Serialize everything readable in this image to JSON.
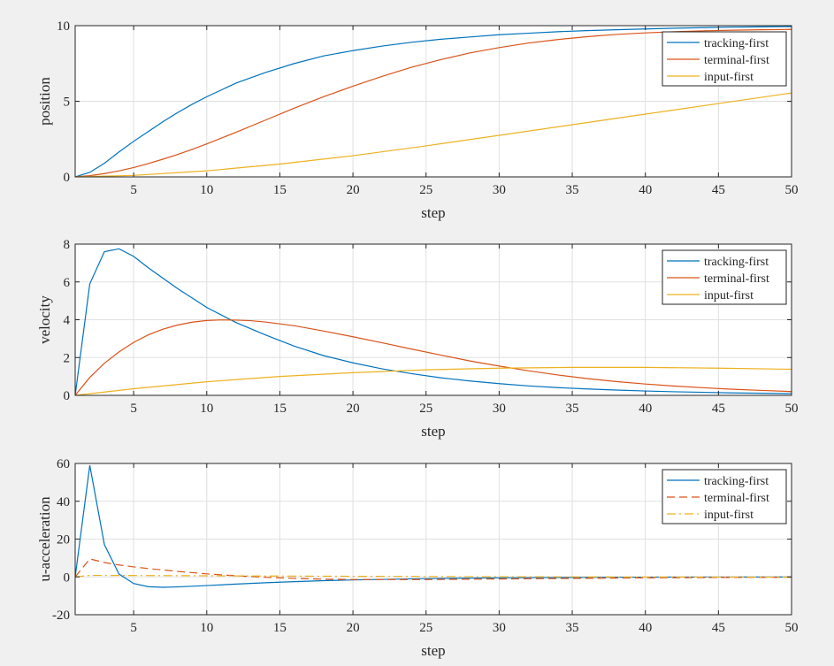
{
  "colors": {
    "tracking": "#0072BD",
    "terminal": "#D95319",
    "input": "#EDB120",
    "figure_bg": "#f0f0f0",
    "axes_bg": "#ffffff",
    "grid": "#e0e0e0",
    "axis": "#262626"
  },
  "chart_data": [
    {
      "type": "line",
      "xlabel": "step",
      "ylabel": "position",
      "xlim": [
        1,
        50
      ],
      "ylim": [
        0,
        10
      ],
      "xticks": [
        "5",
        "10",
        "15",
        "20",
        "25",
        "30",
        "35",
        "40",
        "45",
        "50"
      ],
      "yticks": [
        "0",
        "5",
        "10"
      ],
      "grid": true,
      "legend": "top-right",
      "series": [
        {
          "name": "tracking-first",
          "style": "solid",
          "x": [
            1,
            2,
            3,
            4,
            5,
            6,
            7,
            8,
            9,
            10,
            12,
            14,
            16,
            18,
            20,
            22,
            24,
            26,
            28,
            30,
            32,
            34,
            36,
            38,
            40,
            42,
            44,
            46,
            48,
            50
          ],
          "y": [
            0,
            0.3,
            0.9,
            1.65,
            2.35,
            3.0,
            3.65,
            4.25,
            4.8,
            5.3,
            6.2,
            6.9,
            7.5,
            8.0,
            8.35,
            8.65,
            8.9,
            9.1,
            9.25,
            9.4,
            9.5,
            9.6,
            9.67,
            9.73,
            9.78,
            9.83,
            9.87,
            9.9,
            9.92,
            9.94
          ]
        },
        {
          "name": "terminal-first",
          "style": "solid",
          "x": [
            1,
            2,
            3,
            4,
            5,
            6,
            7,
            8,
            9,
            10,
            12,
            14,
            16,
            18,
            20,
            22,
            24,
            26,
            28,
            30,
            32,
            34,
            36,
            38,
            40,
            42,
            44,
            46,
            48,
            50
          ],
          "y": [
            0,
            0.08,
            0.22,
            0.4,
            0.62,
            0.88,
            1.17,
            1.48,
            1.82,
            2.18,
            2.95,
            3.75,
            4.55,
            5.3,
            6.0,
            6.65,
            7.25,
            7.75,
            8.2,
            8.55,
            8.85,
            9.08,
            9.27,
            9.42,
            9.52,
            9.6,
            9.66,
            9.7,
            9.73,
            9.75
          ]
        },
        {
          "name": "input-first",
          "style": "solid",
          "x": [
            1,
            5,
            10,
            15,
            20,
            25,
            30,
            35,
            40,
            45,
            50
          ],
          "y": [
            0,
            0.1,
            0.4,
            0.85,
            1.4,
            2.05,
            2.75,
            3.45,
            4.15,
            4.85,
            5.55
          ]
        }
      ]
    },
    {
      "type": "line",
      "xlabel": "step",
      "ylabel": "velocity",
      "xlim": [
        1,
        50
      ],
      "ylim": [
        0,
        8
      ],
      "xticks": [
        "5",
        "10",
        "15",
        "20",
        "25",
        "30",
        "35",
        "40",
        "45",
        "50"
      ],
      "yticks": [
        "0",
        "2",
        "4",
        "6",
        "8"
      ],
      "grid": true,
      "legend": "top-right",
      "series": [
        {
          "name": "tracking-first",
          "style": "solid",
          "x": [
            1,
            2,
            3,
            4,
            5,
            6,
            7,
            8,
            9,
            10,
            12,
            14,
            16,
            18,
            20,
            22,
            24,
            26,
            28,
            30,
            32,
            34,
            36,
            38,
            40,
            42,
            44,
            46,
            48,
            50
          ],
          "y": [
            0,
            5.9,
            7.6,
            7.75,
            7.35,
            6.75,
            6.2,
            5.65,
            5.15,
            4.65,
            3.85,
            3.2,
            2.6,
            2.1,
            1.72,
            1.4,
            1.15,
            0.93,
            0.76,
            0.62,
            0.5,
            0.41,
            0.34,
            0.28,
            0.23,
            0.19,
            0.16,
            0.13,
            0.11,
            0.09
          ]
        },
        {
          "name": "terminal-first",
          "style": "solid",
          "x": [
            1,
            2,
            3,
            4,
            5,
            6,
            7,
            8,
            9,
            10,
            11,
            12,
            13,
            14,
            16,
            18,
            20,
            22,
            24,
            26,
            28,
            30,
            32,
            34,
            36,
            38,
            40,
            42,
            44,
            46,
            48,
            50
          ],
          "y": [
            0,
            0.95,
            1.7,
            2.3,
            2.8,
            3.2,
            3.5,
            3.72,
            3.87,
            3.96,
            3.99,
            3.98,
            3.95,
            3.88,
            3.68,
            3.4,
            3.1,
            2.78,
            2.45,
            2.13,
            1.82,
            1.55,
            1.3,
            1.08,
            0.89,
            0.73,
            0.6,
            0.49,
            0.4,
            0.32,
            0.26,
            0.2
          ]
        },
        {
          "name": "input-first",
          "style": "solid",
          "x": [
            1,
            5,
            10,
            15,
            20,
            25,
            30,
            35,
            40,
            45,
            50
          ],
          "y": [
            0,
            0.35,
            0.72,
            1.0,
            1.2,
            1.35,
            1.44,
            1.48,
            1.48,
            1.44,
            1.38
          ]
        }
      ]
    },
    {
      "type": "line",
      "xlabel": "step",
      "ylabel": "u-acceleration",
      "xlim": [
        1,
        50
      ],
      "ylim": [
        -20,
        60
      ],
      "xticks": [
        "5",
        "10",
        "15",
        "20",
        "25",
        "30",
        "35",
        "40",
        "45",
        "50"
      ],
      "yticks": [
        "-20",
        "0",
        "20",
        "40",
        "60"
      ],
      "grid": true,
      "legend": "top-right",
      "series": [
        {
          "name": "tracking-first",
          "style": "solid",
          "x": [
            1,
            2,
            3,
            4,
            5,
            6,
            7,
            8,
            10,
            12,
            14,
            16,
            18,
            20,
            25,
            30,
            35,
            40,
            45,
            50
          ],
          "y": [
            0,
            59,
            17,
            1.5,
            -3.5,
            -5.2,
            -5.5,
            -5.3,
            -4.6,
            -3.8,
            -3.1,
            -2.5,
            -2.0,
            -1.6,
            -0.9,
            -0.5,
            -0.3,
            -0.15,
            -0.08,
            -0.05
          ]
        },
        {
          "name": "terminal-first",
          "style": "dashed",
          "x": [
            1,
            2,
            3,
            4,
            5,
            6,
            8,
            10,
            12,
            14,
            16,
            18,
            20,
            25,
            30,
            35,
            40,
            45,
            50
          ],
          "y": [
            0,
            9.5,
            7.6,
            6.3,
            5.3,
            4.4,
            2.9,
            1.6,
            0.6,
            -0.2,
            -0.8,
            -1.2,
            -1.4,
            -1.4,
            -1.1,
            -0.8,
            -0.5,
            -0.3,
            -0.2
          ]
        },
        {
          "name": "input-first",
          "style": "dashdot",
          "x": [
            1,
            2,
            3,
            5,
            10,
            15,
            20,
            25,
            30,
            35,
            40,
            45,
            50
          ],
          "y": [
            0,
            0.8,
            0.78,
            0.75,
            0.6,
            0.45,
            0.32,
            0.2,
            0.1,
            0.02,
            -0.05,
            -0.1,
            -0.12
          ]
        }
      ]
    }
  ]
}
